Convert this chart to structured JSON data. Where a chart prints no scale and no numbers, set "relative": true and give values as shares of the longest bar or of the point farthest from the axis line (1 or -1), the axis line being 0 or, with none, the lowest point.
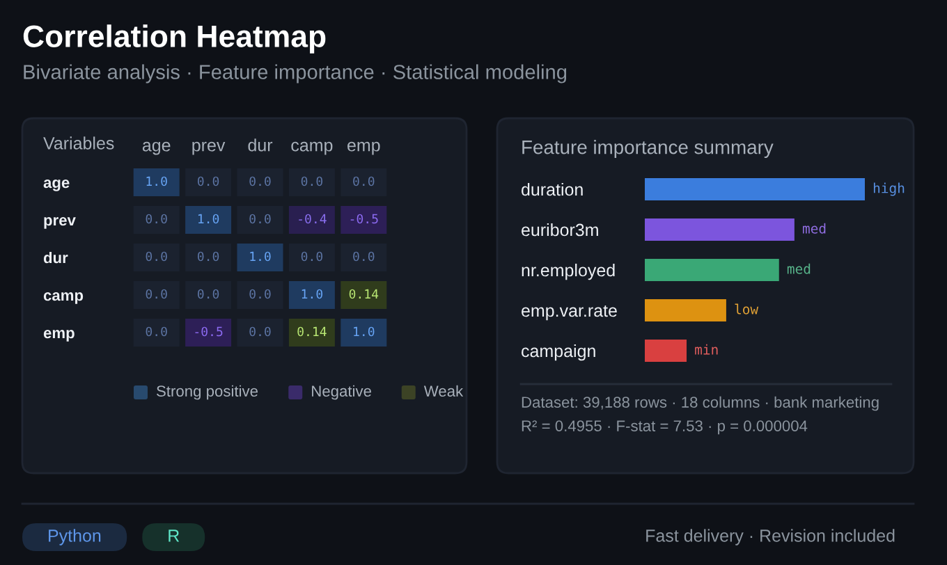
{
  "chart_data": [
    {
      "type": "heatmap",
      "title": "Correlation Heatmap",
      "subtitle": "Bivariate analysis · Feature importance · Statistical modeling",
      "ylabel": "Variables",
      "categories": [
        "age",
        "prev",
        "dur",
        "camp",
        "emp"
      ],
      "y_categories": [
        "age",
        "prev",
        "dur",
        "camp",
        "emp"
      ],
      "cells": [
        [
          1.0,
          0.0,
          0.0,
          0.0,
          0.0
        ],
        [
          0.0,
          1.0,
          0.0,
          -0.4,
          -0.5
        ],
        [
          0.0,
          0.0,
          1.0,
          0.0,
          0.0
        ],
        [
          0.0,
          0.0,
          0.0,
          1.0,
          0.14
        ],
        [
          0.0,
          -0.5,
          0.0,
          0.14,
          1.0
        ]
      ],
      "cell_labels": [
        [
          "1.0",
          "0.0",
          "0.0",
          "0.0",
          "0.0"
        ],
        [
          "0.0",
          "1.0",
          "0.0",
          "-0.4",
          "-0.5"
        ],
        [
          "0.0",
          "0.0",
          "1.0",
          "0.0",
          "0.0"
        ],
        [
          "0.0",
          "0.0",
          "0.0",
          "1.0",
          "0.14"
        ],
        [
          "0.0",
          "-0.5",
          "0.0",
          "0.14",
          "1.0"
        ]
      ]
    },
    {
      "type": "other",
      "categories": [
        "Strong positive",
        "Negative",
        "Weak"
      ],
      "colors": [
        "#284a6e",
        "#3a2b6a",
        "#3c4325"
      ]
    },
    {
      "type": "bar",
      "orientation": "horizontal",
      "relative": true,
      "title": "Feature importance summary",
      "categories": [
        "duration",
        "euribor3m",
        "nr.employed",
        "emp.var.rate",
        "campaign"
      ],
      "values": [
        1,
        0.68,
        0.61,
        0.37,
        0.19
      ],
      "colors": [
        "#3b7ddd",
        "#7c55dd",
        "#3aa876",
        "#dd9211",
        "#d94040"
      ],
      "annotations": [
        {
          "text": "high",
          "x": 1,
          "y": "duration"
        },
        {
          "text": "med",
          "x": 0.68,
          "y": "euribor3m"
        },
        {
          "text": "med",
          "x": 0.61,
          "y": "nr.employed"
        },
        {
          "text": "low",
          "x": 0.37,
          "y": "emp.var.rate"
        },
        {
          "text": "min",
          "x": 0.19,
          "y": "campaign"
        },
        "Dataset: 39,188 rows · 18 columns · bank marketing",
        "R² = 0.4955 · F-stat = 7.53 · p = 0.000004"
      ]
    },
    {
      "type": "other",
      "categories": [
        "Python",
        "R"
      ],
      "colors": [
        "#1b2a40",
        "#16312b"
      ],
      "annotations": [
        "Fast delivery · Revision included"
      ]
    }
  ]
}
